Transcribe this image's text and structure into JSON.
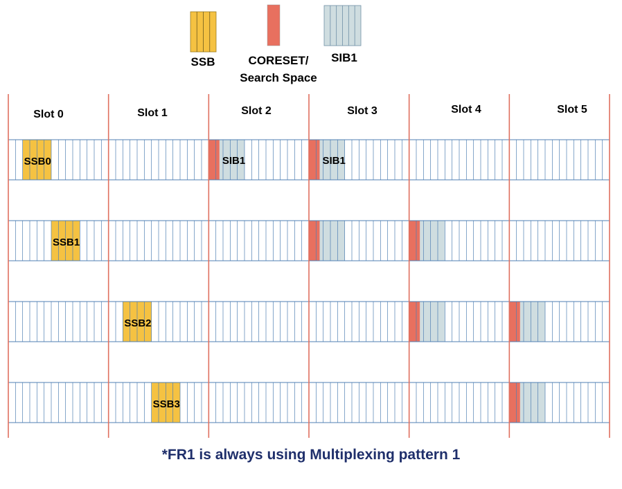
{
  "legend": {
    "ssb_label": "SSB",
    "coreset_label_line1": "CORESET/",
    "coreset_label_line2": "Search Space",
    "sib1_label": "SIB1"
  },
  "slots": [
    "Slot 0",
    "Slot 1",
    "Slot 2",
    "Slot 3",
    "Slot 4",
    "Slot 5"
  ],
  "symbols_per_slot": 14,
  "colors": {
    "ssb": "#F5C242",
    "coreset": "#E8705F",
    "sib1": "#CFDDE0",
    "grid_line": "#4F7FB3",
    "slot_boundary": "#E0705F",
    "footnote": "#1F2F6B"
  },
  "rows": [
    {
      "ssb": {
        "label": "SSB0",
        "slot": 0,
        "start_symbol": 2,
        "length": 4
      },
      "blocks": [
        {
          "slot": 2,
          "coreset_start": 0,
          "coreset_len": 1.5,
          "sib1_len": 3.5,
          "label": "SIB1"
        },
        {
          "slot": 3,
          "coreset_start": 0,
          "coreset_len": 1.5,
          "sib1_len": 3.5,
          "label": "SIB1"
        }
      ]
    },
    {
      "ssb": {
        "label": "SSB1",
        "slot": 0,
        "start_symbol": 6,
        "length": 4
      },
      "blocks": [
        {
          "slot": 3,
          "coreset_start": 0,
          "coreset_len": 1.5,
          "sib1_len": 3.5,
          "label": ""
        },
        {
          "slot": 4,
          "coreset_start": 0,
          "coreset_len": 1.5,
          "sib1_len": 3.5,
          "label": ""
        }
      ]
    },
    {
      "ssb": {
        "label": "SSB2",
        "slot": 1,
        "start_symbol": 2,
        "length": 4
      },
      "blocks": [
        {
          "slot": 4,
          "coreset_start": 0,
          "coreset_len": 1.5,
          "sib1_len": 3.5,
          "label": ""
        },
        {
          "slot": 5,
          "coreset_start": 0,
          "coreset_len": 1.5,
          "sib1_len": 3.5,
          "label": ""
        }
      ]
    },
    {
      "ssb": {
        "label": "SSB3",
        "slot": 1,
        "start_symbol": 6,
        "length": 4
      },
      "blocks": [
        {
          "slot": 5,
          "coreset_start": 0,
          "coreset_len": 1.5,
          "sib1_len": 3.5,
          "label": ""
        }
      ]
    }
  ],
  "footnote": "*FR1 is always using Multiplexing pattern 1"
}
